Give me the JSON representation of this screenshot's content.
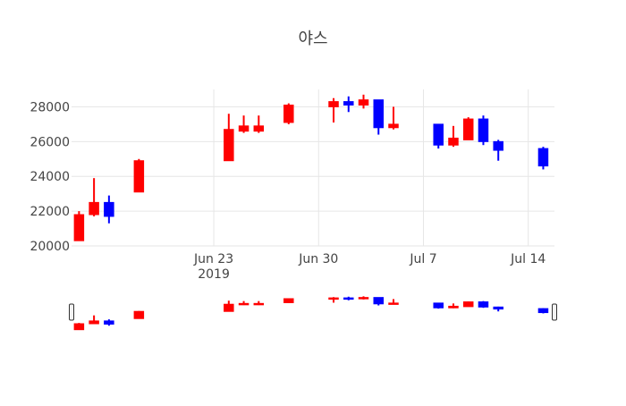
{
  "chart_data": {
    "type": "candlestick",
    "title": "야스",
    "colors": {
      "increasing": "#ff0000",
      "decreasing": "#0000ff",
      "grid": "#e6e6e6",
      "text": "#444444"
    },
    "xaxis": {
      "range": [
        "2019-06-13",
        "2019-07-15"
      ],
      "ticks": [
        {
          "date": "2019-06-23",
          "label": "Jun 23"
        },
        {
          "date": "2019-06-30",
          "label": "Jun 30"
        },
        {
          "date": "2019-07-07",
          "label": "Jul 7"
        },
        {
          "date": "2019-07-14",
          "label": "Jul 14"
        }
      ],
      "year_label": "2019",
      "grid": true
    },
    "yaxis": {
      "range": [
        20000,
        29000
      ],
      "ticks": [
        20000,
        22000,
        24000,
        26000,
        28000
      ],
      "grid": true
    },
    "rangeslider": {
      "visible": true
    },
    "candles": [
      {
        "date": "2019-06-14",
        "open": 20300,
        "high": 22000,
        "low": 20300,
        "close": 21800
      },
      {
        "date": "2019-06-15",
        "open": 21800,
        "high": 23900,
        "low": 21700,
        "close": 22500
      },
      {
        "date": "2019-06-16",
        "open": 22500,
        "high": 22900,
        "low": 21300,
        "close": 21700
      },
      {
        "date": "2019-06-18",
        "open": 23100,
        "high": 25000,
        "low": 23100,
        "close": 24900
      },
      {
        "date": "2019-06-24",
        "open": 24900,
        "high": 27600,
        "low": 24900,
        "close": 26700
      },
      {
        "date": "2019-06-25",
        "open": 26600,
        "high": 27500,
        "low": 26500,
        "close": 26900
      },
      {
        "date": "2019-06-26",
        "open": 26600,
        "high": 27500,
        "low": 26500,
        "close": 26900
      },
      {
        "date": "2019-06-28",
        "open": 27100,
        "high": 28200,
        "low": 27000,
        "close": 28100
      },
      {
        "date": "2019-07-01",
        "open": 28000,
        "high": 28500,
        "low": 27100,
        "close": 28300
      },
      {
        "date": "2019-07-02",
        "open": 28300,
        "high": 28600,
        "low": 27700,
        "close": 28100
      },
      {
        "date": "2019-07-03",
        "open": 28100,
        "high": 28700,
        "low": 27900,
        "close": 28400
      },
      {
        "date": "2019-07-04",
        "open": 28400,
        "high": 28400,
        "low": 26400,
        "close": 26800
      },
      {
        "date": "2019-07-05",
        "open": 26800,
        "high": 28000,
        "low": 26700,
        "close": 27000
      },
      {
        "date": "2019-07-08",
        "open": 27000,
        "high": 27000,
        "low": 25600,
        "close": 25800
      },
      {
        "date": "2019-07-09",
        "open": 25800,
        "high": 26900,
        "low": 25700,
        "close": 26200
      },
      {
        "date": "2019-07-10",
        "open": 26100,
        "high": 27400,
        "low": 26100,
        "close": 27300
      },
      {
        "date": "2019-07-11",
        "open": 27300,
        "high": 27500,
        "low": 25800,
        "close": 26000
      },
      {
        "date": "2019-07-12",
        "open": 26000,
        "high": 26100,
        "low": 24900,
        "close": 25500
      },
      {
        "date": "2019-07-15",
        "open": 25600,
        "high": 25700,
        "low": 24400,
        "close": 24600
      }
    ]
  }
}
